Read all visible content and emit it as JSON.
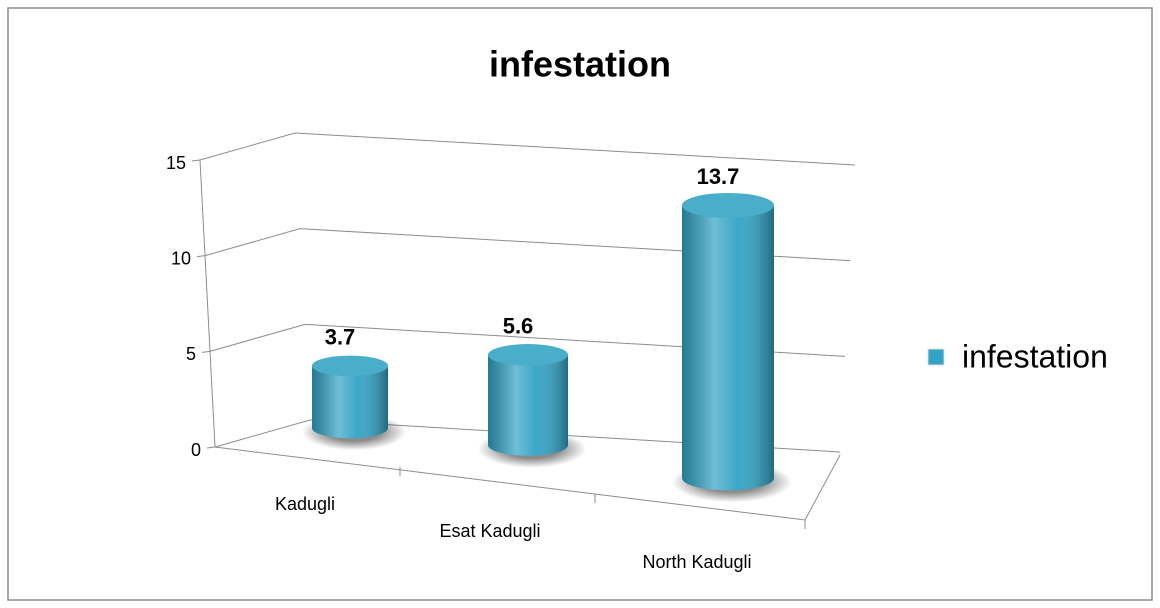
{
  "chart_data": {
    "type": "bar3d",
    "title": "infestation",
    "categories": [
      "Kadugli",
      "Esat Kadugli",
      "North Kadugli"
    ],
    "series": [
      {
        "name": "infestation",
        "color": "#31a3c4",
        "values": [
          3.7,
          5.6,
          13.7
        ]
      }
    ],
    "ylim": [
      0,
      15
    ],
    "yticks": [
      0,
      5,
      10,
      15
    ],
    "grid": true,
    "legend": "right",
    "data_labels": true
  }
}
